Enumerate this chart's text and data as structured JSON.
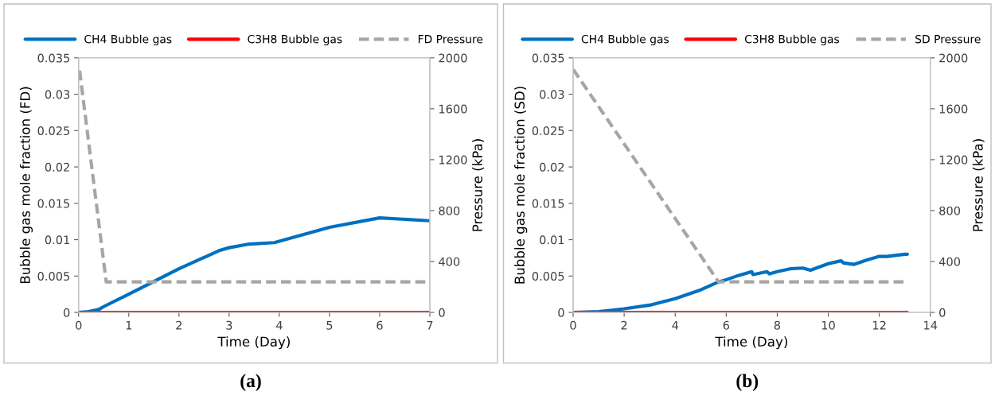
{
  "chart_data": [
    {
      "type": "line",
      "xlabel": "Time (Day)",
      "ylabel": "Bubble gas mole fraction (FD)",
      "y2label": "Pressure (kPa)",
      "xlim": [
        0,
        7
      ],
      "xticks": [
        0,
        1,
        2,
        3,
        4,
        5,
        6,
        7
      ],
      "ylim": [
        0,
        0.035
      ],
      "yticks": [
        0,
        0.005,
        0.01,
        0.015,
        0.02,
        0.025,
        0.03,
        0.035
      ],
      "y2lim": [
        0,
        2000
      ],
      "y2ticks": [
        0,
        400,
        800,
        1200,
        1600,
        2000
      ],
      "legend": "top",
      "grid": false,
      "annotations": [
        "(a)"
      ],
      "series": [
        {
          "name": "CH4 Bubble gas",
          "color": "#0070c0",
          "line_style": "solid",
          "x": [
            0,
            0.2,
            0.4,
            0.5,
            1,
            2,
            2.8,
            3,
            3.4,
            3.9,
            5,
            6,
            7
          ],
          "values": [
            0,
            0.0001,
            0.0004,
            0.0008,
            0.0025,
            0.006,
            0.0085,
            0.0089,
            0.0094,
            0.0096,
            0.0117,
            0.013,
            0.0126
          ]
        },
        {
          "name": "C3H8 Bubble gas",
          "color": "#ff0000",
          "line_style": "solid",
          "x": [
            0,
            7
          ],
          "values": [
            0,
            0
          ]
        },
        {
          "name": "FD Pressure",
          "color": "#a6a6a6",
          "line_style": "dashed",
          "axis": "y2",
          "x": [
            0.02,
            0.55,
            7
          ],
          "values": [
            1900,
            240,
            240
          ]
        }
      ]
    },
    {
      "type": "line",
      "xlabel": "Time (Day)",
      "ylabel": "Bubble gas mole fraction (SD)",
      "y2label": "Pressure (kPa)",
      "xlim": [
        0,
        14
      ],
      "xticks": [
        0,
        2,
        4,
        6,
        8,
        10,
        12,
        14
      ],
      "ylim": [
        0,
        0.035
      ],
      "yticks": [
        0,
        0.005,
        0.01,
        0.015,
        0.02,
        0.025,
        0.03,
        0.035
      ],
      "y2lim": [
        0,
        2000
      ],
      "y2ticks": [
        0,
        400,
        800,
        1200,
        1600,
        2000
      ],
      "legend": "top",
      "grid": false,
      "annotations": [
        "(b)"
      ],
      "series": [
        {
          "name": "CH4 Bubble gas",
          "color": "#0070c0",
          "line_style": "solid",
          "x": [
            0,
            1,
            2,
            3,
            4,
            5,
            5.7,
            6,
            6.5,
            7,
            7.05,
            7.6,
            7.7,
            8,
            8.5,
            9,
            9.3,
            10,
            10.5,
            10.6,
            11,
            11.5,
            12,
            12.3,
            13,
            13.1
          ],
          "values": [
            0,
            0.0001,
            0.0005,
            0.001,
            0.0019,
            0.0031,
            0.0042,
            0.0045,
            0.0051,
            0.0056,
            0.0052,
            0.0056,
            0.0053,
            0.0056,
            0.006,
            0.0061,
            0.0058,
            0.0067,
            0.0071,
            0.0068,
            0.0066,
            0.0072,
            0.0077,
            0.0077,
            0.008,
            0.008
          ]
        },
        {
          "name": "C3H8 Bubble gas",
          "color": "#ff0000",
          "line_style": "solid",
          "x": [
            0,
            13.1
          ],
          "values": [
            0,
            0
          ]
        },
        {
          "name": "SD Pressure",
          "color": "#a6a6a6",
          "line_style": "dashed",
          "axis": "y2",
          "x": [
            0,
            5.7,
            13
          ],
          "values": [
            1910,
            240,
            240
          ]
        }
      ]
    }
  ]
}
